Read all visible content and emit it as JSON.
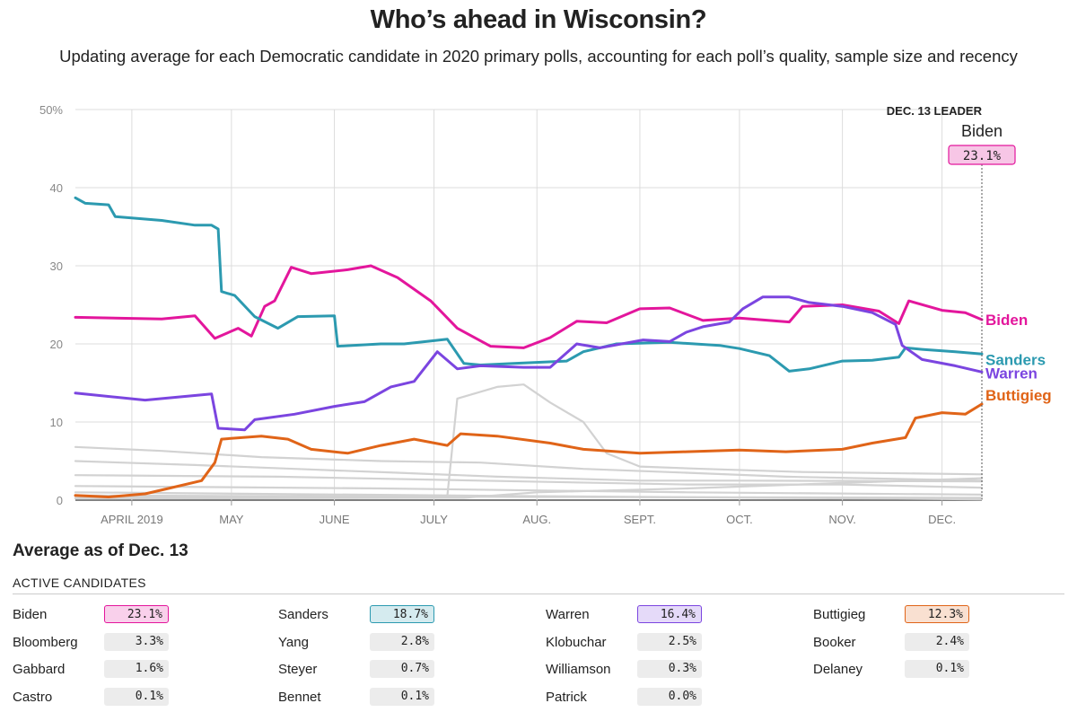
{
  "title": "Who’s ahead in Wisconsin?",
  "subtitle": "Updating average for each Democratic candidate in 2020 primary polls, accounting for each poll’s quality, sample size and recency",
  "leader_box": {
    "heading": "DEC. 13 LEADER",
    "name": "Biden",
    "value": "23.1%"
  },
  "average_title": "Average as of Dec. 13",
  "active_label": "ACTIVE CANDIDATES",
  "candidates": [
    {
      "name": "Biden",
      "value": "23.1%",
      "color": "#e3169c"
    },
    {
      "name": "Sanders",
      "value": "18.7%",
      "color": "#2c9ab0"
    },
    {
      "name": "Warren",
      "value": "16.4%",
      "color": "#7b45e0"
    },
    {
      "name": "Buttigieg",
      "value": "12.3%",
      "color": "#e06418"
    },
    {
      "name": "Bloomberg",
      "value": "3.3%"
    },
    {
      "name": "Yang",
      "value": "2.8%"
    },
    {
      "name": "Klobuchar",
      "value": "2.5%"
    },
    {
      "name": "Booker",
      "value": "2.4%"
    },
    {
      "name": "Gabbard",
      "value": "1.6%"
    },
    {
      "name": "Steyer",
      "value": "0.7%"
    },
    {
      "name": "Williamson",
      "value": "0.3%"
    },
    {
      "name": "Delaney",
      "value": "0.1%"
    },
    {
      "name": "Castro",
      "value": "0.1%"
    },
    {
      "name": "Bennet",
      "value": "0.1%"
    },
    {
      "name": "Patrick",
      "value": "0.0%"
    }
  ],
  "chart_data": {
    "type": "line",
    "ylim": [
      0,
      50
    ],
    "y_ticks": [
      0,
      10,
      20,
      30,
      40,
      50
    ],
    "y_tick_labels": [
      "0",
      "10",
      "20",
      "30",
      "40",
      "50%"
    ],
    "x_range": [
      "2019-03-15",
      "2019-12-13"
    ],
    "x_ticks": [
      {
        "date": "2019-04-01",
        "label": "APRIL 2019"
      },
      {
        "date": "2019-05-01",
        "label": "MAY"
      },
      {
        "date": "2019-06-01",
        "label": "JUNE"
      },
      {
        "date": "2019-07-01",
        "label": "JULY"
      },
      {
        "date": "2019-08-01",
        "label": "AUG."
      },
      {
        "date": "2019-09-01",
        "label": "SEPT."
      },
      {
        "date": "2019-10-01",
        "label": "OCT."
      },
      {
        "date": "2019-11-01",
        "label": "NOV."
      },
      {
        "date": "2019-12-01",
        "label": "DEC."
      }
    ],
    "series": [
      {
        "name": "Biden",
        "color": "#e3169c",
        "points": [
          [
            "2019-03-15",
            23.4
          ],
          [
            "2019-04-10",
            23.2
          ],
          [
            "2019-04-20",
            23.6
          ],
          [
            "2019-04-26",
            20.7
          ],
          [
            "2019-05-03",
            22.0
          ],
          [
            "2019-05-07",
            21.0
          ],
          [
            "2019-05-11",
            24.8
          ],
          [
            "2019-05-14",
            25.5
          ],
          [
            "2019-05-19",
            29.8
          ],
          [
            "2019-05-25",
            29.0
          ],
          [
            "2019-06-05",
            29.5
          ],
          [
            "2019-06-12",
            30.0
          ],
          [
            "2019-06-20",
            28.5
          ],
          [
            "2019-06-30",
            25.5
          ],
          [
            "2019-07-08",
            22.0
          ],
          [
            "2019-07-18",
            19.7
          ],
          [
            "2019-07-28",
            19.5
          ],
          [
            "2019-08-05",
            20.8
          ],
          [
            "2019-08-13",
            22.9
          ],
          [
            "2019-08-22",
            22.7
          ],
          [
            "2019-09-01",
            24.5
          ],
          [
            "2019-09-10",
            24.6
          ],
          [
            "2019-09-20",
            23.0
          ],
          [
            "2019-10-01",
            23.3
          ],
          [
            "2019-10-10",
            23.0
          ],
          [
            "2019-10-16",
            22.8
          ],
          [
            "2019-10-20",
            24.8
          ],
          [
            "2019-11-01",
            25.0
          ],
          [
            "2019-11-12",
            24.2
          ],
          [
            "2019-11-18",
            22.6
          ],
          [
            "2019-11-21",
            25.5
          ],
          [
            "2019-12-01",
            24.3
          ],
          [
            "2019-12-08",
            24.0
          ],
          [
            "2019-12-13",
            23.1
          ]
        ]
      },
      {
        "name": "Sanders",
        "color": "#2c9ab0",
        "points": [
          [
            "2019-03-15",
            38.7
          ],
          [
            "2019-03-18",
            38.0
          ],
          [
            "2019-03-25",
            37.8
          ],
          [
            "2019-03-27",
            36.3
          ],
          [
            "2019-04-10",
            35.8
          ],
          [
            "2019-04-20",
            35.2
          ],
          [
            "2019-04-25",
            35.2
          ],
          [
            "2019-04-27",
            34.7
          ],
          [
            "2019-04-28",
            26.7
          ],
          [
            "2019-05-02",
            26.2
          ],
          [
            "2019-05-08",
            23.5
          ],
          [
            "2019-05-15",
            22.0
          ],
          [
            "2019-05-21",
            23.5
          ],
          [
            "2019-06-01",
            23.6
          ],
          [
            "2019-06-02",
            19.7
          ],
          [
            "2019-06-15",
            20.0
          ],
          [
            "2019-06-22",
            20.0
          ],
          [
            "2019-07-05",
            20.6
          ],
          [
            "2019-07-10",
            17.5
          ],
          [
            "2019-07-15",
            17.3
          ],
          [
            "2019-07-25",
            17.5
          ],
          [
            "2019-08-10",
            17.8
          ],
          [
            "2019-08-15",
            19.0
          ],
          [
            "2019-08-25",
            20.0
          ],
          [
            "2019-09-10",
            20.2
          ],
          [
            "2019-09-25",
            19.8
          ],
          [
            "2019-10-01",
            19.4
          ],
          [
            "2019-10-10",
            18.5
          ],
          [
            "2019-10-16",
            16.5
          ],
          [
            "2019-10-22",
            16.8
          ],
          [
            "2019-11-01",
            17.8
          ],
          [
            "2019-11-10",
            17.9
          ],
          [
            "2019-11-18",
            18.3
          ],
          [
            "2019-11-20",
            19.5
          ],
          [
            "2019-11-25",
            19.3
          ],
          [
            "2019-12-05",
            19.0
          ],
          [
            "2019-12-13",
            18.7
          ]
        ]
      },
      {
        "name": "Warren",
        "color": "#7b45e0",
        "points": [
          [
            "2019-03-15",
            13.7
          ],
          [
            "2019-04-05",
            12.8
          ],
          [
            "2019-04-25",
            13.6
          ],
          [
            "2019-04-27",
            9.2
          ],
          [
            "2019-05-05",
            9.0
          ],
          [
            "2019-05-08",
            10.3
          ],
          [
            "2019-05-20",
            11.0
          ],
          [
            "2019-06-01",
            12.0
          ],
          [
            "2019-06-10",
            12.6
          ],
          [
            "2019-06-18",
            14.5
          ],
          [
            "2019-06-25",
            15.2
          ],
          [
            "2019-07-02",
            19.0
          ],
          [
            "2019-07-08",
            16.8
          ],
          [
            "2019-07-15",
            17.2
          ],
          [
            "2019-07-28",
            17.0
          ],
          [
            "2019-08-05",
            17.0
          ],
          [
            "2019-08-13",
            20.0
          ],
          [
            "2019-08-20",
            19.5
          ],
          [
            "2019-09-02",
            20.5
          ],
          [
            "2019-09-10",
            20.3
          ],
          [
            "2019-09-15",
            21.5
          ],
          [
            "2019-09-20",
            22.2
          ],
          [
            "2019-09-28",
            22.8
          ],
          [
            "2019-10-02",
            24.5
          ],
          [
            "2019-10-08",
            26.0
          ],
          [
            "2019-10-16",
            26.0
          ],
          [
            "2019-10-22",
            25.3
          ],
          [
            "2019-11-01",
            24.8
          ],
          [
            "2019-11-10",
            24.0
          ],
          [
            "2019-11-17",
            22.5
          ],
          [
            "2019-11-19",
            19.8
          ],
          [
            "2019-11-25",
            18.0
          ],
          [
            "2019-12-05",
            17.2
          ],
          [
            "2019-12-13",
            16.4
          ]
        ]
      },
      {
        "name": "Buttigieg",
        "color": "#e06418",
        "points": [
          [
            "2019-03-15",
            0.6
          ],
          [
            "2019-03-25",
            0.4
          ],
          [
            "2019-04-05",
            0.8
          ],
          [
            "2019-04-12",
            1.5
          ],
          [
            "2019-04-22",
            2.5
          ],
          [
            "2019-04-26",
            4.8
          ],
          [
            "2019-04-28",
            7.8
          ],
          [
            "2019-05-10",
            8.2
          ],
          [
            "2019-05-18",
            7.8
          ],
          [
            "2019-05-25",
            6.5
          ],
          [
            "2019-06-05",
            6.0
          ],
          [
            "2019-06-15",
            7.0
          ],
          [
            "2019-06-25",
            7.8
          ],
          [
            "2019-07-05",
            7.0
          ],
          [
            "2019-07-09",
            8.5
          ],
          [
            "2019-07-20",
            8.2
          ],
          [
            "2019-08-05",
            7.3
          ],
          [
            "2019-08-15",
            6.5
          ],
          [
            "2019-09-01",
            6.0
          ],
          [
            "2019-09-15",
            6.2
          ],
          [
            "2019-10-01",
            6.4
          ],
          [
            "2019-10-15",
            6.2
          ],
          [
            "2019-11-01",
            6.5
          ],
          [
            "2019-11-10",
            7.3
          ],
          [
            "2019-11-20",
            8.0
          ],
          [
            "2019-11-23",
            10.5
          ],
          [
            "2019-12-01",
            11.2
          ],
          [
            "2019-12-08",
            11.0
          ],
          [
            "2019-12-13",
            12.3
          ]
        ]
      },
      {
        "name": "",
        "color": "#d2d2d2",
        "points": [
          [
            "2019-03-15",
            0.3
          ],
          [
            "2019-07-05",
            0.5
          ],
          [
            "2019-07-08",
            13.0
          ],
          [
            "2019-07-20",
            14.5
          ],
          [
            "2019-07-28",
            14.8
          ],
          [
            "2019-08-05",
            12.5
          ],
          [
            "2019-08-15",
            10.0
          ],
          [
            "2019-08-22",
            6.0
          ],
          [
            "2019-09-01",
            4.3
          ],
          [
            "2019-09-20",
            4.0
          ],
          [
            "2019-10-20",
            3.6
          ],
          [
            "2019-12-13",
            3.3
          ]
        ]
      },
      {
        "name": "",
        "color": "#d2d2d2",
        "points": [
          [
            "2019-03-15",
            6.8
          ],
          [
            "2019-04-10",
            6.3
          ],
          [
            "2019-05-10",
            5.5
          ],
          [
            "2019-06-15",
            5.0
          ],
          [
            "2019-07-15",
            4.8
          ],
          [
            "2019-08-15",
            4.0
          ],
          [
            "2019-09-15",
            3.5
          ],
          [
            "2019-10-15",
            3.0
          ],
          [
            "2019-12-13",
            2.5
          ]
        ]
      },
      {
        "name": "",
        "color": "#d2d2d2",
        "points": [
          [
            "2019-03-15",
            5.0
          ],
          [
            "2019-04-20",
            4.5
          ],
          [
            "2019-05-20",
            4.0
          ],
          [
            "2019-06-20",
            3.5
          ],
          [
            "2019-07-20",
            3.0
          ],
          [
            "2019-09-01",
            2.5
          ],
          [
            "2019-10-01",
            2.5
          ],
          [
            "2019-12-13",
            2.4
          ]
        ]
      },
      {
        "name": "",
        "color": "#d2d2d2",
        "points": [
          [
            "2019-03-15",
            3.2
          ],
          [
            "2019-05-15",
            3.0
          ],
          [
            "2019-07-15",
            2.5
          ],
          [
            "2019-09-15",
            2.0
          ],
          [
            "2019-11-01",
            2.0
          ],
          [
            "2019-12-13",
            1.6
          ]
        ]
      },
      {
        "name": "",
        "color": "#d2d2d2",
        "points": [
          [
            "2019-03-15",
            0.2
          ],
          [
            "2019-07-10",
            0.3
          ],
          [
            "2019-08-01",
            1.0
          ],
          [
            "2019-09-15",
            1.5
          ],
          [
            "2019-11-01",
            2.2
          ],
          [
            "2019-12-13",
            2.8
          ]
        ]
      },
      {
        "name": "",
        "color": "#d2d2d2",
        "points": [
          [
            "2019-03-15",
            1.8
          ],
          [
            "2019-06-15",
            1.5
          ],
          [
            "2019-09-15",
            1.0
          ],
          [
            "2019-12-13",
            0.7
          ]
        ]
      },
      {
        "name": "",
        "color": "#d2d2d2",
        "points": [
          [
            "2019-03-15",
            0.6
          ],
          [
            "2019-08-01",
            0.4
          ],
          [
            "2019-12-13",
            0.3
          ]
        ]
      },
      {
        "name": "",
        "color": "#d2d2d2",
        "points": [
          [
            "2019-03-15",
            1.0
          ],
          [
            "2019-08-01",
            0.5
          ],
          [
            "2019-12-13",
            0.1
          ]
        ]
      }
    ]
  }
}
